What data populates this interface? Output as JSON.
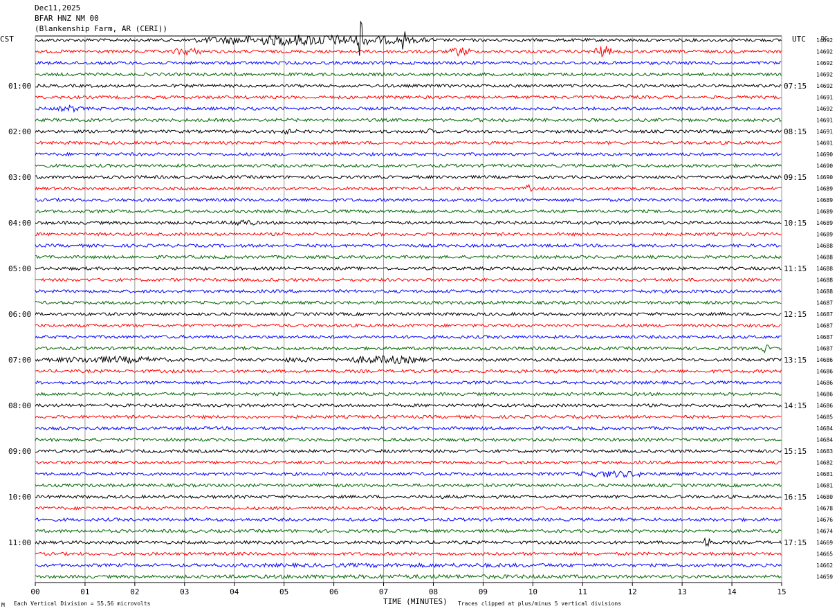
{
  "header": {
    "date": "Dec11,2025",
    "station": "BFAR HNZ NM 00",
    "site": "(Blankenship Farm, AR (CERI))"
  },
  "left_zone": "CST",
  "right_zone": "UTC",
  "dc_header": "DC",
  "footer": {
    "left_mark": "M",
    "division_note": "Each Vertical Division =   55.56 microvolts",
    "xlabel": "TIME (MINUTES)",
    "clip_note": "Traces clipped at plus/minus 5 vertical divisions"
  },
  "chart_data": {
    "type": "line",
    "title": "BFAR HNZ NM 00",
    "xlabel": "TIME (MINUTES)",
    "x_ticks": [
      "00",
      "01",
      "02",
      "03",
      "04",
      "05",
      "06",
      "07",
      "08",
      "09",
      "10",
      "11",
      "12",
      "13",
      "14",
      "15"
    ],
    "xlim": [
      0,
      15
    ],
    "rows_per_hour": 4,
    "row_minutes": 15,
    "trace_colors": [
      "#000000",
      "#ff0000",
      "#0000ff",
      "#006400"
    ],
    "left_hour_labels": [
      "01:00",
      "02:00",
      "03:00",
      "04:00",
      "05:00",
      "06:00",
      "07:00",
      "08:00",
      "09:00",
      "10:00",
      "11:00"
    ],
    "right_hour_labels": [
      "07:15",
      "08:15",
      "09:15",
      "10:15",
      "11:15",
      "12:15",
      "13:15",
      "14:15",
      "15:15",
      "16:15",
      "17:15"
    ],
    "dc_offsets": [
      14692,
      14692,
      14692,
      14692,
      14692,
      14691,
      14692,
      14691,
      14691,
      14691,
      14690,
      14690,
      14690,
      14689,
      14689,
      14689,
      14689,
      14689,
      14688,
      14688,
      14688,
      14688,
      14688,
      14687,
      14687,
      14687,
      14687,
      14687,
      14686,
      14686,
      14686,
      14686,
      14686,
      14685,
      14684,
      14684,
      14683,
      14682,
      14681,
      14681,
      14680,
      14678,
      14676,
      14674,
      14669,
      14665,
      14662,
      14659
    ],
    "noise_level": 2.2,
    "events": [
      {
        "row": 0,
        "start_min": 3.0,
        "end_min": 8.0,
        "amp": 8,
        "label": ""
      },
      {
        "row": 0,
        "start_min": 6.5,
        "end_min": 6.58,
        "amp": 50
      },
      {
        "row": 0,
        "start_min": 7.35,
        "end_min": 7.45,
        "amp": 18
      },
      {
        "row": 0,
        "start_min": 5.85,
        "end_min": 5.95,
        "amp": 14
      },
      {
        "row": 1,
        "start_min": 2.7,
        "end_min": 3.4,
        "amp": 6
      },
      {
        "row": 1,
        "start_min": 8.3,
        "end_min": 8.8,
        "amp": 7
      },
      {
        "row": 1,
        "start_min": 11.2,
        "end_min": 11.6,
        "amp": 9
      },
      {
        "row": 6,
        "start_min": 0.4,
        "end_min": 1.0,
        "amp": 5
      },
      {
        "row": 8,
        "start_min": 4.6,
        "end_min": 5.4,
        "amp": 4
      },
      {
        "row": 8,
        "start_min": 7.85,
        "end_min": 8.0,
        "amp": 5
      },
      {
        "row": 13,
        "start_min": 9.8,
        "end_min": 10.0,
        "amp": 6
      },
      {
        "row": 16,
        "start_min": 3.8,
        "end_min": 4.5,
        "amp": 5
      },
      {
        "row": 27,
        "start_min": 14.6,
        "end_min": 14.75,
        "amp": 7
      },
      {
        "row": 28,
        "start_min": 0.0,
        "end_min": 3.0,
        "amp": 5
      },
      {
        "row": 28,
        "start_min": 4.8,
        "end_min": 5.8,
        "amp": 4
      },
      {
        "row": 28,
        "start_min": 6.0,
        "end_min": 8.0,
        "amp": 6
      },
      {
        "row": 38,
        "start_min": 10.7,
        "end_min": 12.5,
        "amp": 5
      },
      {
        "row": 40,
        "start_min": 7.9,
        "end_min": 8.6,
        "amp": 3
      },
      {
        "row": 44,
        "start_min": 13.4,
        "end_min": 13.6,
        "amp": 8
      },
      {
        "row": 46,
        "start_min": 0.0,
        "end_min": 15.0,
        "amp": 3
      },
      {
        "row": 47,
        "start_min": 0.0,
        "end_min": 15.0,
        "amp": 3
      }
    ]
  }
}
